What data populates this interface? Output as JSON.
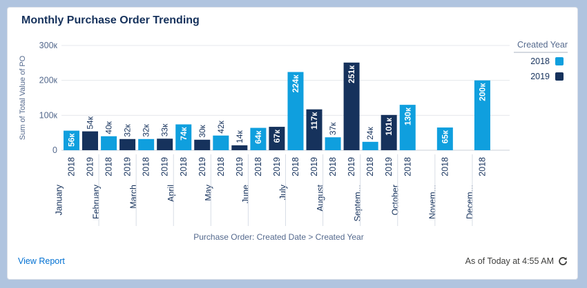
{
  "card": {
    "title": "Monthly Purchase Order Trending",
    "view_report": "View Report",
    "as_of": "As of Today at 4:55 AM",
    "refresh_icon": "refresh-icon"
  },
  "colors": {
    "2018": "#0f9fde",
    "2019": "#16325c"
  },
  "chart_data": {
    "type": "bar",
    "title": "Monthly Purchase Order Trending",
    "xlabel": "Purchase Order: Created Date > Created Year",
    "ylabel": "Sum of Total Value of PO",
    "ylim": [
      0,
      300000
    ],
    "yticks": [
      0,
      100000,
      200000,
      300000
    ],
    "ytick_labels": [
      "0",
      "100к",
      "200к",
      "300к"
    ],
    "legend": {
      "title": "Created Year",
      "position": "right",
      "entries": [
        "2018",
        "2019"
      ]
    },
    "groups": [
      {
        "label": "January",
        "bars": [
          {
            "year": "2018",
            "value": 56000,
            "label": "56к"
          },
          {
            "year": "2019",
            "value": 54000,
            "label": "54к"
          }
        ]
      },
      {
        "label": "February",
        "bars": [
          {
            "year": "2018",
            "value": 40000,
            "label": "40к"
          },
          {
            "year": "2019",
            "value": 32000,
            "label": "32к"
          }
        ]
      },
      {
        "label": "March",
        "bars": [
          {
            "year": "2018",
            "value": 32000,
            "label": "32к"
          },
          {
            "year": "2019",
            "value": 33000,
            "label": "33к"
          }
        ]
      },
      {
        "label": "April",
        "bars": [
          {
            "year": "2018",
            "value": 74000,
            "label": "74к"
          },
          {
            "year": "2019",
            "value": 30000,
            "label": "30к"
          }
        ]
      },
      {
        "label": "May",
        "bars": [
          {
            "year": "2018",
            "value": 42000,
            "label": "42к"
          },
          {
            "year": "2019",
            "value": 14000,
            "label": "14к"
          }
        ]
      },
      {
        "label": "June",
        "bars": [
          {
            "year": "2018",
            "value": 64000,
            "label": "64к"
          },
          {
            "year": "2019",
            "value": 67000,
            "label": "67к"
          }
        ]
      },
      {
        "label": "July",
        "bars": [
          {
            "year": "2018",
            "value": 224000,
            "label": "224к"
          },
          {
            "year": "2019",
            "value": 117000,
            "label": "117к"
          }
        ]
      },
      {
        "label": "August",
        "bars": [
          {
            "year": "2018",
            "value": 37000,
            "label": "37к"
          },
          {
            "year": "2019",
            "value": 251000,
            "label": "251к"
          }
        ]
      },
      {
        "label": "Septem...",
        "bars": [
          {
            "year": "2018",
            "value": 24000,
            "label": "24к"
          },
          {
            "year": "2019",
            "value": 101000,
            "label": "101к"
          }
        ]
      },
      {
        "label": "October",
        "bars": [
          {
            "year": "2018",
            "value": 130000,
            "label": "130к"
          }
        ]
      },
      {
        "label": "Novem...",
        "bars": [
          {
            "year": "2018",
            "value": 65000,
            "label": "65к"
          }
        ]
      },
      {
        "label": "Decem...",
        "bars": [
          {
            "year": "2018",
            "value": 200000,
            "label": "200к"
          }
        ]
      }
    ]
  }
}
